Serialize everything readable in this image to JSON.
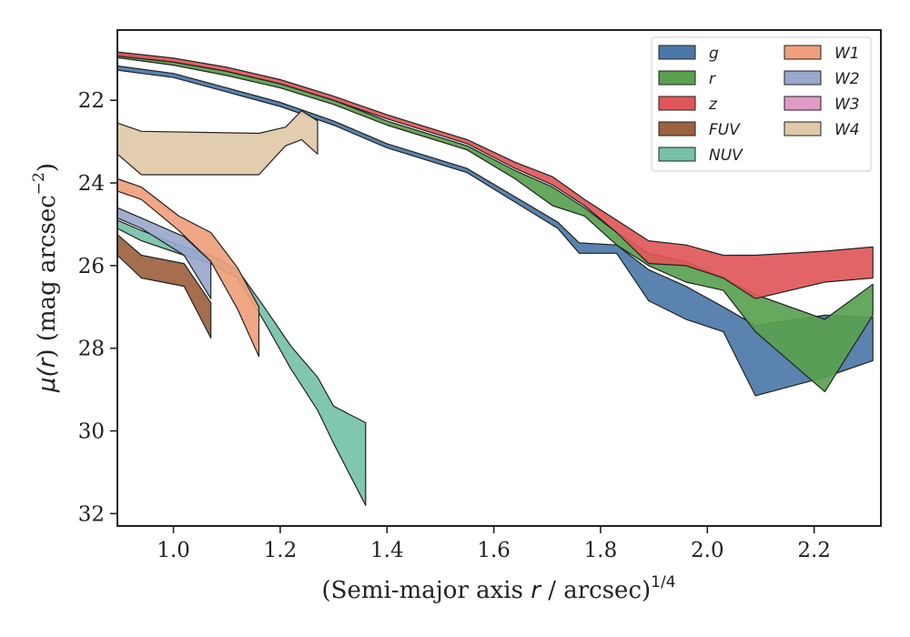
{
  "chart_data": {
    "type": "area",
    "xlabel": {
      "prefix": "(Semi-major axis ",
      "var": "r",
      "suffix": " / arcsec)",
      "sup": "1/4"
    },
    "ylabel": {
      "pre": "μ(",
      "var": "r",
      "post": ") (mag arcsec",
      "sup": "−2",
      "close": ")"
    },
    "xlim": [
      0.895,
      2.325
    ],
    "ylim": [
      20.3,
      32.3
    ],
    "y_inverted": true,
    "x_ticks": [
      "1.0",
      "1.2",
      "1.4",
      "1.6",
      "1.8",
      "2.0",
      "2.2"
    ],
    "y_ticks": [
      "22",
      "24",
      "26",
      "28",
      "30",
      "32"
    ],
    "legend": {
      "location": "upper right",
      "columns": 2
    },
    "series": [
      {
        "name": "g",
        "color": "#4c78a8",
        "upper": [
          [
            0.895,
            21.17
          ],
          [
            1.0,
            21.35
          ],
          [
            1.1,
            21.7
          ],
          [
            1.2,
            22.05
          ],
          [
            1.3,
            22.5
          ],
          [
            1.4,
            23.05
          ],
          [
            1.55,
            23.65
          ],
          [
            1.72,
            24.95
          ],
          [
            1.76,
            25.45
          ],
          [
            1.83,
            25.5
          ],
          [
            1.89,
            26.1
          ],
          [
            1.96,
            26.5
          ],
          [
            2.03,
            27.0
          ],
          [
            2.09,
            27.45
          ],
          [
            2.22,
            27.2
          ],
          [
            2.31,
            27.25
          ]
        ],
        "lower": [
          [
            0.895,
            21.27
          ],
          [
            1.0,
            21.45
          ],
          [
            1.1,
            21.8
          ],
          [
            1.2,
            22.15
          ],
          [
            1.3,
            22.6
          ],
          [
            1.4,
            23.15
          ],
          [
            1.55,
            23.75
          ],
          [
            1.72,
            25.1
          ],
          [
            1.76,
            25.7
          ],
          [
            1.83,
            25.7
          ],
          [
            1.89,
            26.85
          ],
          [
            1.96,
            27.3
          ],
          [
            2.03,
            27.6
          ],
          [
            2.09,
            29.15
          ],
          [
            2.22,
            28.7
          ],
          [
            2.31,
            28.3
          ]
        ]
      },
      {
        "name": "r",
        "color": "#59a14f",
        "upper": [
          [
            0.895,
            20.87
          ],
          [
            1.0,
            21.05
          ],
          [
            1.1,
            21.3
          ],
          [
            1.2,
            21.6
          ],
          [
            1.3,
            22.0
          ],
          [
            1.4,
            22.5
          ],
          [
            1.55,
            23.1
          ],
          [
            1.64,
            23.7
          ],
          [
            1.71,
            24.1
          ],
          [
            1.77,
            24.6
          ],
          [
            1.83,
            25.2
          ],
          [
            1.89,
            25.7
          ],
          [
            1.96,
            25.9
          ],
          [
            2.03,
            26.3
          ],
          [
            2.09,
            26.7
          ],
          [
            2.22,
            27.3
          ],
          [
            2.31,
            26.45
          ]
        ],
        "lower": [
          [
            0.895,
            20.97
          ],
          [
            1.0,
            21.15
          ],
          [
            1.1,
            21.4
          ],
          [
            1.2,
            21.7
          ],
          [
            1.3,
            22.1
          ],
          [
            1.4,
            22.6
          ],
          [
            1.55,
            23.2
          ],
          [
            1.64,
            23.9
          ],
          [
            1.71,
            24.55
          ],
          [
            1.77,
            24.8
          ],
          [
            1.83,
            25.5
          ],
          [
            1.89,
            26.0
          ],
          [
            1.96,
            26.4
          ],
          [
            2.03,
            26.6
          ],
          [
            2.09,
            27.6
          ],
          [
            2.22,
            29.05
          ],
          [
            2.31,
            27.2
          ]
        ]
      },
      {
        "name": "z",
        "color": "#e15759",
        "upper": [
          [
            0.895,
            20.83
          ],
          [
            1.0,
            20.98
          ],
          [
            1.1,
            21.2
          ],
          [
            1.2,
            21.5
          ],
          [
            1.3,
            21.9
          ],
          [
            1.4,
            22.35
          ],
          [
            1.55,
            22.95
          ],
          [
            1.64,
            23.5
          ],
          [
            1.71,
            23.85
          ],
          [
            1.77,
            24.4
          ],
          [
            1.83,
            24.9
          ],
          [
            1.89,
            25.4
          ],
          [
            1.96,
            25.5
          ],
          [
            2.03,
            25.75
          ],
          [
            2.09,
            25.75
          ],
          [
            2.22,
            25.65
          ],
          [
            2.31,
            25.55
          ]
        ],
        "lower": [
          [
            0.895,
            20.93
          ],
          [
            1.0,
            21.08
          ],
          [
            1.1,
            21.3
          ],
          [
            1.2,
            21.6
          ],
          [
            1.3,
            22.0
          ],
          [
            1.4,
            22.45
          ],
          [
            1.55,
            23.05
          ],
          [
            1.64,
            23.65
          ],
          [
            1.71,
            24.05
          ],
          [
            1.77,
            24.55
          ],
          [
            1.83,
            25.2
          ],
          [
            1.89,
            25.95
          ],
          [
            1.96,
            26.0
          ],
          [
            2.03,
            26.3
          ],
          [
            2.09,
            26.8
          ],
          [
            2.22,
            26.4
          ],
          [
            2.31,
            26.3
          ]
        ]
      },
      {
        "name": "FUV",
        "color": "#9c6240",
        "upper": [
          [
            0.895,
            25.25
          ],
          [
            0.94,
            25.75
          ],
          [
            1.02,
            25.95
          ],
          [
            1.07,
            26.9
          ]
        ],
        "lower": [
          [
            0.895,
            25.75
          ],
          [
            0.94,
            26.3
          ],
          [
            1.02,
            26.5
          ],
          [
            1.07,
            27.75
          ]
        ]
      },
      {
        "name": "NUV",
        "color": "#76c1a9",
        "upper": [
          [
            0.895,
            24.9
          ],
          [
            0.94,
            25.15
          ],
          [
            1.02,
            25.55
          ],
          [
            1.07,
            25.75
          ],
          [
            1.12,
            26.1
          ],
          [
            1.17,
            27.0
          ],
          [
            1.22,
            27.95
          ],
          [
            1.27,
            28.7
          ],
          [
            1.3,
            29.4
          ],
          [
            1.36,
            29.8
          ]
        ],
        "lower": [
          [
            0.895,
            25.1
          ],
          [
            0.94,
            25.4
          ],
          [
            1.02,
            25.75
          ],
          [
            1.07,
            25.95
          ],
          [
            1.12,
            26.3
          ],
          [
            1.17,
            27.35
          ],
          [
            1.22,
            28.5
          ],
          [
            1.27,
            29.5
          ],
          [
            1.3,
            30.3
          ],
          [
            1.36,
            31.8
          ]
        ]
      },
      {
        "name": "W1",
        "color": "#ef9f7c",
        "upper": [
          [
            0.895,
            23.9
          ],
          [
            0.94,
            24.1
          ],
          [
            1.01,
            24.8
          ],
          [
            1.07,
            25.2
          ],
          [
            1.12,
            26.05
          ],
          [
            1.16,
            27.0
          ]
        ],
        "lower": [
          [
            0.895,
            24.2
          ],
          [
            0.94,
            24.4
          ],
          [
            1.01,
            25.15
          ],
          [
            1.07,
            25.9
          ],
          [
            1.12,
            27.05
          ],
          [
            1.16,
            28.2
          ]
        ]
      },
      {
        "name": "W2",
        "color": "#9aa8cc",
        "upper": [
          [
            0.895,
            24.6
          ],
          [
            0.94,
            24.85
          ],
          [
            1.02,
            25.3
          ],
          [
            1.07,
            25.9
          ]
        ],
        "lower": [
          [
            0.895,
            24.85
          ],
          [
            0.94,
            25.1
          ],
          [
            1.02,
            25.75
          ],
          [
            1.07,
            26.8
          ]
        ]
      },
      {
        "name": "W3",
        "color": "#e09ac7",
        "upper": [],
        "lower": []
      },
      {
        "name": "W4",
        "color": "#e0c9a8",
        "upper": [
          [
            0.895,
            22.55
          ],
          [
            0.94,
            22.75
          ],
          [
            1.16,
            22.8
          ],
          [
            1.21,
            22.65
          ],
          [
            1.24,
            22.25
          ],
          [
            1.27,
            22.5
          ]
        ],
        "lower": [
          [
            0.895,
            23.3
          ],
          [
            0.94,
            23.8
          ],
          [
            1.16,
            23.8
          ],
          [
            1.21,
            23.1
          ],
          [
            1.24,
            22.95
          ],
          [
            1.27,
            23.3
          ]
        ]
      }
    ]
  }
}
